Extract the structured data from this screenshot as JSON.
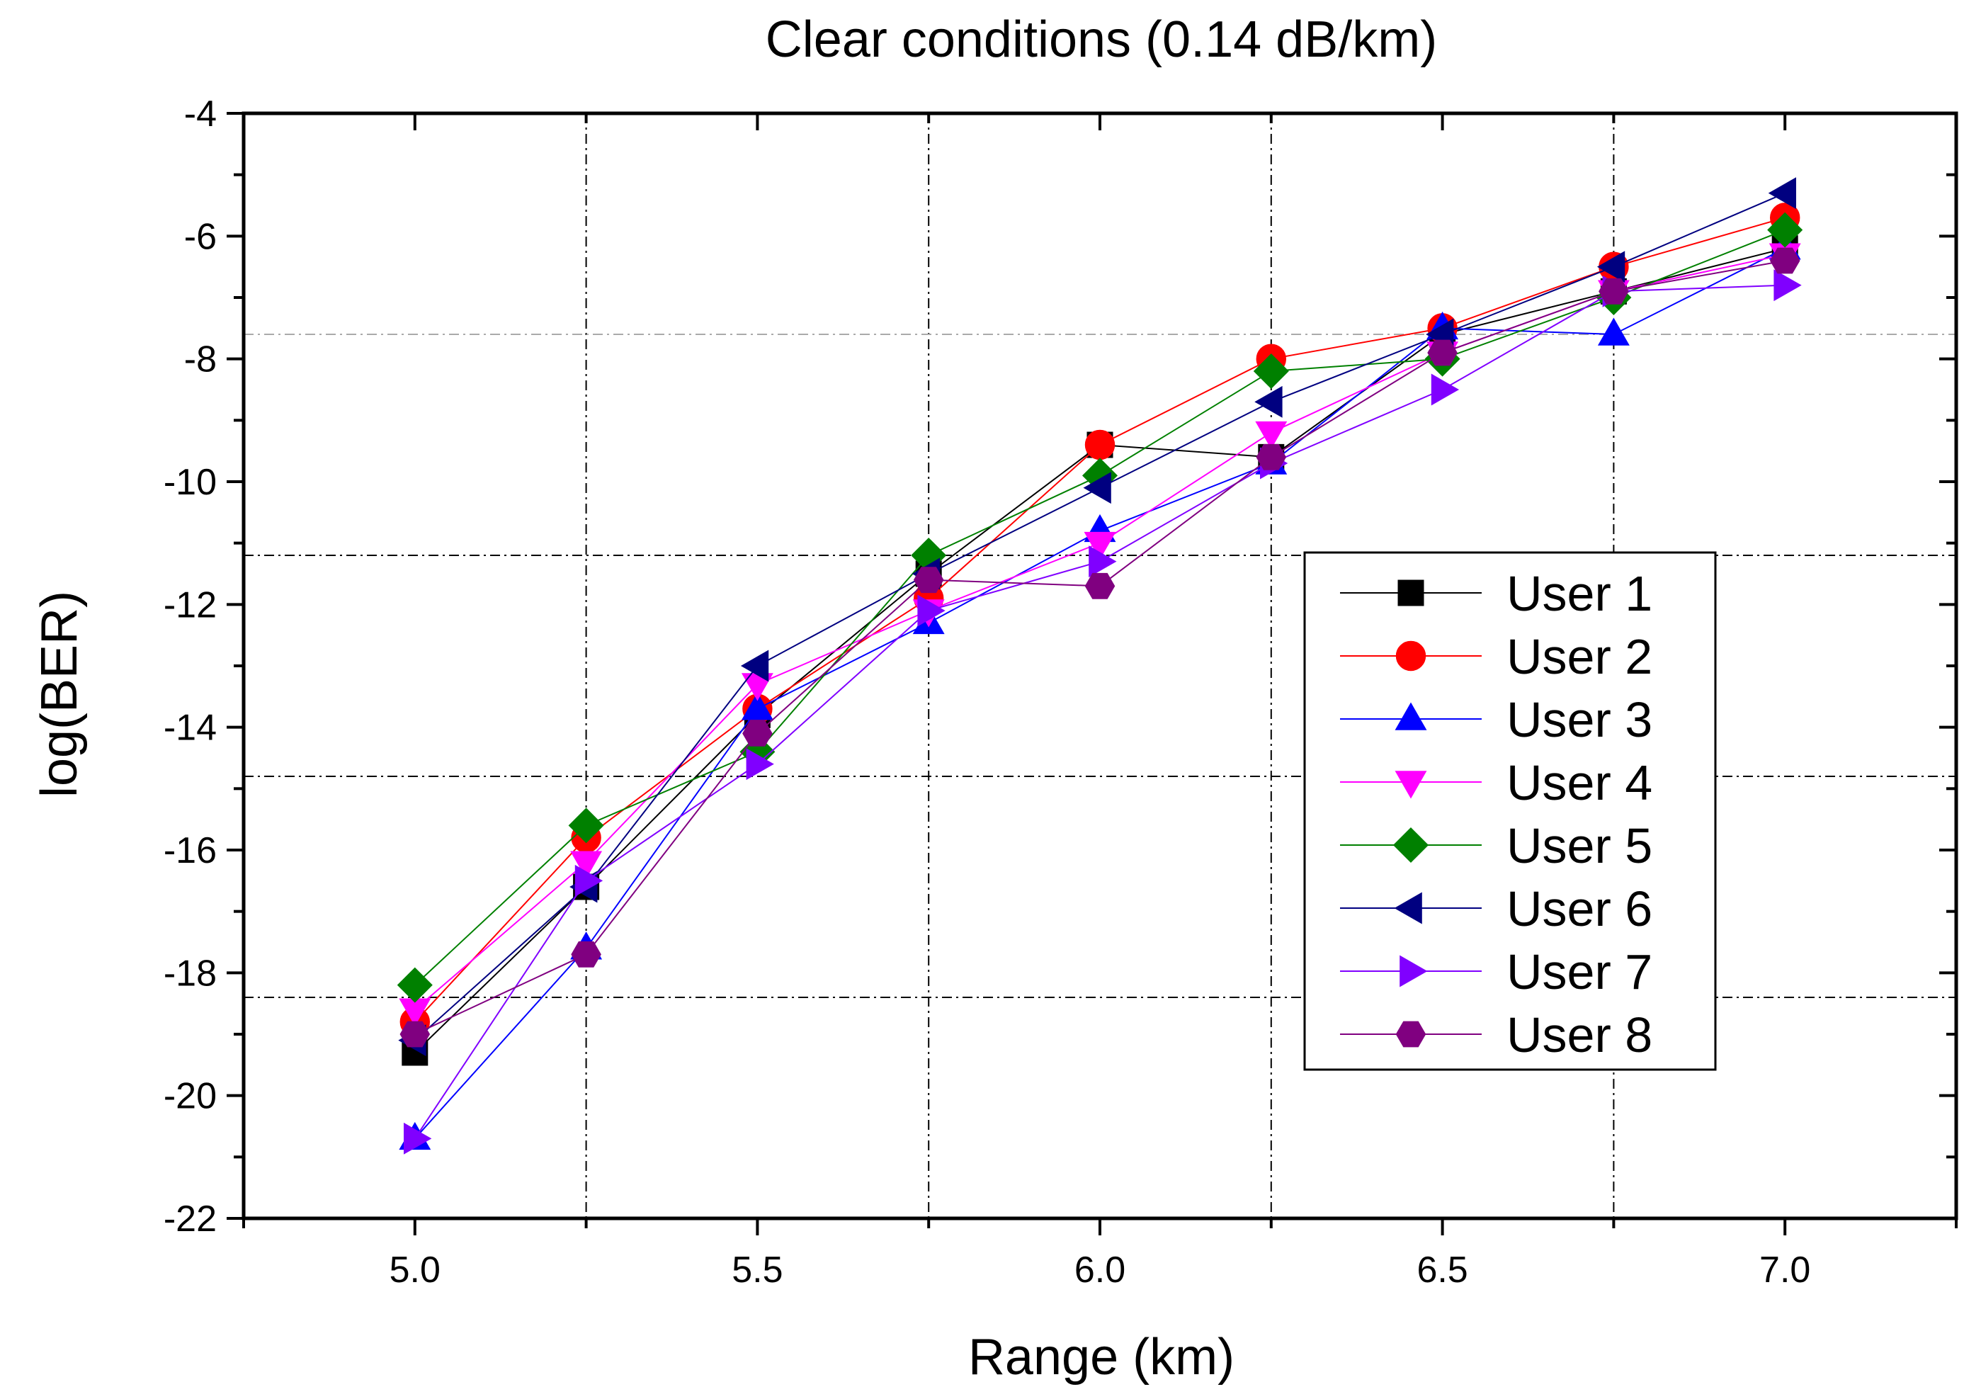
{
  "chart_data": {
    "type": "line",
    "title": "Clear conditions (0.14 dB/km)",
    "xlabel": "Range (km)",
    "ylabel": "log(BER)",
    "xlim": [
      4.75,
      7.25
    ],
    "ylim": [
      -22,
      -4
    ],
    "x_ticks": [
      5.0,
      5.5,
      6.0,
      6.5,
      7.0
    ],
    "x_tick_labels": [
      "5.0",
      "5.5",
      "6.0",
      "6.5",
      "7.0"
    ],
    "y_ticks": [
      -22,
      -20,
      -18,
      -16,
      -14,
      -12,
      -10,
      -8,
      -6,
      -4
    ],
    "y_tick_labels": [
      "-22",
      "-20",
      "-18",
      "-16",
      "-14",
      "-12",
      "-10",
      "-8",
      "-6",
      "-4"
    ],
    "grid": "dash-dot vertical at 5.25, 5.75, 6.25, 6.75; horizontal at -7.6, -11.2, -14.8, -18.4",
    "legend_position": "right-middle",
    "x": [
      5.0,
      5.25,
      5.5,
      5.75,
      6.0,
      6.25,
      6.5,
      6.75,
      7.0
    ],
    "series": [
      {
        "name": "User 1",
        "color": "#000000",
        "marker": "square",
        "values": [
          -19.3,
          -16.6,
          -13.8,
          -11.5,
          -9.4,
          -9.6,
          -7.6,
          -6.9,
          -6.2
        ]
      },
      {
        "name": "User 2",
        "color": "#ff0000",
        "marker": "circle",
        "values": [
          -18.8,
          -15.8,
          -13.7,
          -11.9,
          -9.4,
          -8.0,
          -7.5,
          -6.5,
          -5.7
        ]
      },
      {
        "name": "User 3",
        "color": "#0000ff",
        "marker": "triangle-up",
        "values": [
          -20.7,
          -17.6,
          -13.7,
          -12.3,
          -10.8,
          -9.7,
          -7.5,
          -7.6,
          -6.2
        ]
      },
      {
        "name": "User 4",
        "color": "#ff00ff",
        "marker": "triangle-down",
        "values": [
          -18.6,
          -16.2,
          -13.3,
          -12.1,
          -11.0,
          -9.2,
          -7.9,
          -6.9,
          -6.3
        ]
      },
      {
        "name": "User 5",
        "color": "#008000",
        "marker": "diamond",
        "values": [
          -18.2,
          -15.6,
          -14.4,
          -11.2,
          -9.9,
          -8.2,
          -8.0,
          -7.0,
          -5.9
        ]
      },
      {
        "name": "User 6",
        "color": "#000080",
        "marker": "triangle-left",
        "values": [
          -19.1,
          -16.6,
          -13.0,
          -11.5,
          -10.1,
          -8.7,
          -7.6,
          -6.5,
          -5.3
        ]
      },
      {
        "name": "User 7",
        "color": "#8000ff",
        "marker": "triangle-right",
        "values": [
          -20.7,
          -16.5,
          -14.6,
          -12.1,
          -11.3,
          -9.7,
          -8.5,
          -6.9,
          -6.8
        ]
      },
      {
        "name": "User 8",
        "color": "#800080",
        "marker": "hexagon",
        "values": [
          -19.0,
          -17.7,
          -14.1,
          -11.6,
          -11.7,
          -9.6,
          -7.9,
          -6.9,
          -6.4
        ]
      }
    ]
  }
}
